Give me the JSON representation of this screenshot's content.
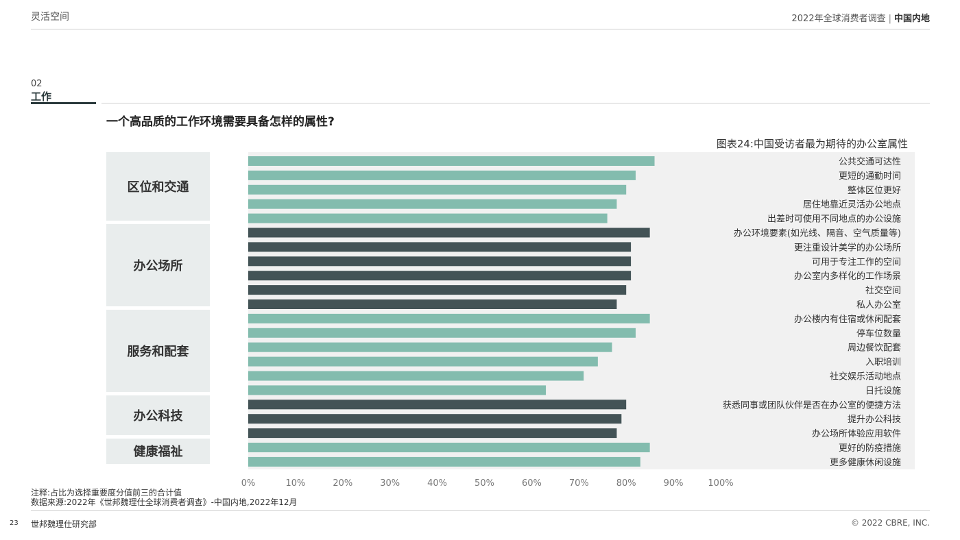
{
  "header": {
    "left_title": "灵活空间",
    "right_title": "2022年全球消费者调查",
    "right_separator": "|",
    "right_region": "中国内地"
  },
  "section": {
    "number": "02",
    "name": "工作"
  },
  "question": "一个高品质的工作环境需要具备怎样的属性?",
  "colors": {
    "teal": "#83bcae",
    "dark": "#435356",
    "plot_bg": "#f1f1f1",
    "category_bg": "#e9eded"
  },
  "chart_data": {
    "type": "bar",
    "orientation": "horizontal",
    "title": "图表24:中国受访者最为期待的办公室属性",
    "xlim": [
      0,
      100
    ],
    "x_ticks": [
      "0%",
      "10%",
      "20%",
      "30%",
      "40%",
      "50%",
      "60%",
      "70%",
      "80%",
      "90%",
      "100%"
    ],
    "groups": [
      {
        "name": "区位和交通",
        "color": "#83bcae",
        "count": 5
      },
      {
        "name": "办公场所",
        "color": "#435356",
        "count": 6
      },
      {
        "name": "服务和配套",
        "color": "#83bcae",
        "count": 6
      },
      {
        "name": "办公科技",
        "color": "#435356",
        "count": 3
      },
      {
        "name": "健康福祉",
        "color": "#83bcae",
        "count": 2
      }
    ],
    "categories": [
      "公共交通可达性",
      "更短的通勤时间",
      "整体区位更好",
      "居住地靠近灵活办公地点",
      "出差时可使用不同地点的办公设施",
      "办公环境要素(如光线、隔音、空气质量等)",
      "更注重设计美学的办公场所",
      "可用于专注工作的空间",
      "办公室内多样化的工作场景",
      "社交空间",
      "私人办公室",
      "办公楼内有住宿或休闲配套",
      "停车位数量",
      "周边餐饮配套",
      "入职培训",
      "社交娱乐活动地点",
      "日托设施",
      "获悉同事或团队伙伴是否在办公室的便捷方法",
      "提升办公科技",
      "办公场所体验应用软件",
      "更好的防疫措施",
      "更多健康休闲设施"
    ],
    "values": [
      86,
      82,
      80,
      78,
      76,
      85,
      81,
      81,
      81,
      80,
      78,
      85,
      82,
      77,
      74,
      71,
      63,
      80,
      79,
      78,
      85,
      83
    ]
  },
  "notes": {
    "note": "注释:占比为选择重要度分值前三的合计值",
    "source": "数据来源:2022年《世邦魏理仕全球消费者调查》-中国内地,2022年12月"
  },
  "footer": {
    "page_number": "23",
    "left": "世邦魏理仕研究部",
    "right": "© 2022 CBRE, INC."
  }
}
